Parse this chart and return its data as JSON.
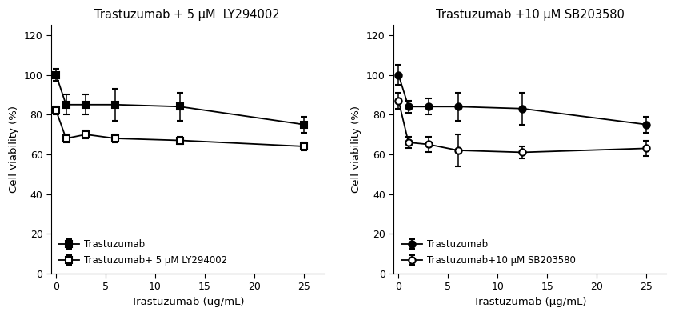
{
  "panel1": {
    "title": "Trastuzumab + 5 μM  LY294002",
    "xlabel": "Trastuzumab (ug/mL)",
    "ylabel": "Cell viability (%)",
    "x": [
      0,
      1,
      3,
      6,
      12.5,
      25
    ],
    "line1": {
      "y": [
        100,
        85,
        85,
        85,
        84,
        75
      ],
      "yerr": [
        3,
        5,
        5,
        8,
        7,
        4
      ],
      "label": "Trastuzumab",
      "marker": "s",
      "color": "black",
      "filled": true
    },
    "line2": {
      "y": [
        82,
        68,
        70,
        68,
        67,
        64
      ],
      "yerr": [
        2,
        2,
        2,
        2,
        2,
        2
      ],
      "label": "Trastuzumab+ 5 μM LY294002",
      "marker": "s",
      "color": "black",
      "filled": false
    }
  },
  "panel2": {
    "title": "Trastuzumab +10 μM SB203580",
    "xlabel": "Trastuzumab (μg/mL)",
    "ylabel": "Cell viability (%)",
    "x": [
      0,
      1,
      3,
      6,
      12.5,
      25
    ],
    "line1": {
      "y": [
        100,
        84,
        84,
        84,
        83,
        75
      ],
      "yerr": [
        5,
        3,
        4,
        7,
        8,
        4
      ],
      "label": "Trastuzumab",
      "marker": "o",
      "color": "black",
      "filled": true
    },
    "line2": {
      "y": [
        87,
        66,
        65,
        62,
        61,
        63
      ],
      "yerr": [
        4,
        3,
        4,
        8,
        3,
        4
      ],
      "label": "Trastuzumab+10 μM SB203580",
      "marker": "o",
      "color": "black",
      "filled": false
    }
  },
  "ylim": [
    0,
    125
  ],
  "yticks": [
    0,
    20,
    40,
    60,
    80,
    100,
    120
  ],
  "xlim": [
    -0.5,
    27
  ],
  "xticks": [
    0,
    5,
    10,
    15,
    20,
    25
  ],
  "legend_fontsize": 8.5,
  "title_fontsize": 10.5,
  "axis_label_fontsize": 9.5,
  "tick_fontsize": 9
}
